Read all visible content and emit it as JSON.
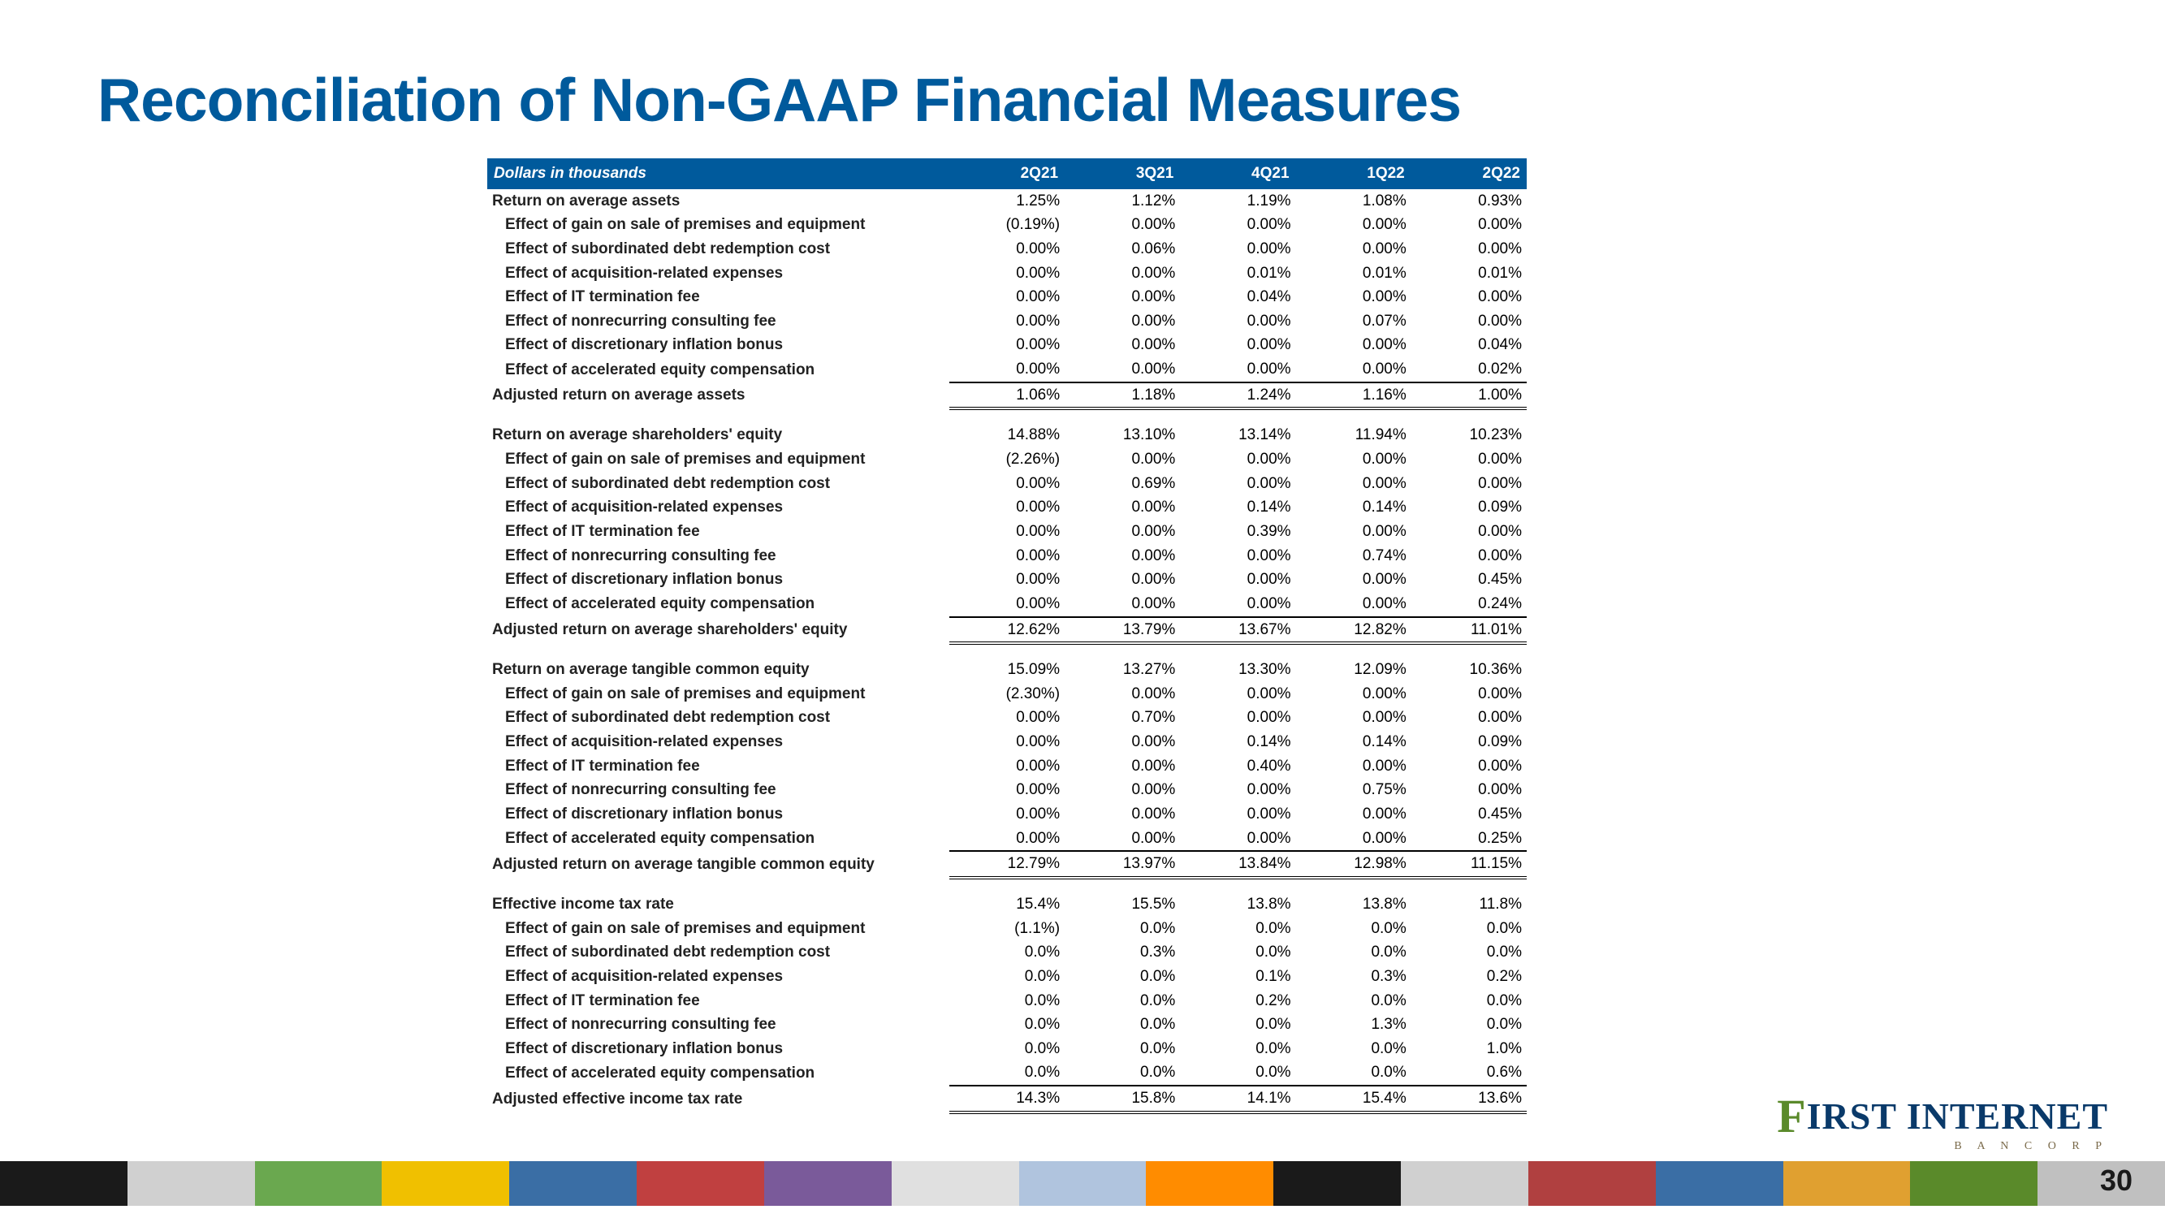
{
  "title": "Reconciliation of Non-GAAP Financial Measures",
  "header_label": "Dollars in thousands",
  "columns": [
    "2Q21",
    "3Q21",
    "4Q21",
    "1Q22",
    "2Q22"
  ],
  "sections": [
    {
      "rows": [
        {
          "label": "Return on average assets",
          "indent": false,
          "vals": [
            "1.25%",
            "1.12%",
            "1.19%",
            "1.08%",
            "0.93%"
          ]
        },
        {
          "label": "Effect of gain on sale of premises and equipment",
          "indent": true,
          "vals": [
            "(0.19%)",
            "0.00%",
            "0.00%",
            "0.00%",
            "0.00%"
          ]
        },
        {
          "label": "Effect of subordinated debt redemption cost",
          "indent": true,
          "vals": [
            "0.00%",
            "0.06%",
            "0.00%",
            "0.00%",
            "0.00%"
          ]
        },
        {
          "label": "Effect of acquisition-related expenses",
          "indent": true,
          "vals": [
            "0.00%",
            "0.00%",
            "0.01%",
            "0.01%",
            "0.01%"
          ]
        },
        {
          "label": "Effect of IT termination fee",
          "indent": true,
          "vals": [
            "0.00%",
            "0.00%",
            "0.04%",
            "0.00%",
            "0.00%"
          ]
        },
        {
          "label": "Effect of nonrecurring consulting fee",
          "indent": true,
          "vals": [
            "0.00%",
            "0.00%",
            "0.00%",
            "0.07%",
            "0.00%"
          ]
        },
        {
          "label": "Effect of discretionary inflation bonus",
          "indent": true,
          "vals": [
            "0.00%",
            "0.00%",
            "0.00%",
            "0.00%",
            "0.04%"
          ]
        },
        {
          "label": "Effect of accelerated equity compensation",
          "indent": true,
          "vals": [
            "0.00%",
            "0.00%",
            "0.00%",
            "0.00%",
            "0.02%"
          ],
          "underline": true
        },
        {
          "label": "Adjusted return on average assets",
          "indent": false,
          "vals": [
            "1.06%",
            "1.18%",
            "1.24%",
            "1.16%",
            "1.00%"
          ],
          "subtotal": true
        }
      ]
    },
    {
      "rows": [
        {
          "label": "Return on average shareholders' equity",
          "indent": false,
          "vals": [
            "14.88%",
            "13.10%",
            "13.14%",
            "11.94%",
            "10.23%"
          ]
        },
        {
          "label": "Effect of gain on sale of premises and equipment",
          "indent": true,
          "vals": [
            "(2.26%)",
            "0.00%",
            "0.00%",
            "0.00%",
            "0.00%"
          ]
        },
        {
          "label": "Effect of subordinated debt redemption cost",
          "indent": true,
          "vals": [
            "0.00%",
            "0.69%",
            "0.00%",
            "0.00%",
            "0.00%"
          ]
        },
        {
          "label": "Effect of acquisition-related expenses",
          "indent": true,
          "vals": [
            "0.00%",
            "0.00%",
            "0.14%",
            "0.14%",
            "0.09%"
          ]
        },
        {
          "label": "Effect of IT termination fee",
          "indent": true,
          "vals": [
            "0.00%",
            "0.00%",
            "0.39%",
            "0.00%",
            "0.00%"
          ]
        },
        {
          "label": "Effect of nonrecurring consulting fee",
          "indent": true,
          "vals": [
            "0.00%",
            "0.00%",
            "0.00%",
            "0.74%",
            "0.00%"
          ]
        },
        {
          "label": "Effect of discretionary inflation bonus",
          "indent": true,
          "vals": [
            "0.00%",
            "0.00%",
            "0.00%",
            "0.00%",
            "0.45%"
          ]
        },
        {
          "label": "Effect of accelerated equity compensation",
          "indent": true,
          "vals": [
            "0.00%",
            "0.00%",
            "0.00%",
            "0.00%",
            "0.24%"
          ],
          "underline": true
        },
        {
          "label": "Adjusted return on average shareholders' equity",
          "indent": false,
          "vals": [
            "12.62%",
            "13.79%",
            "13.67%",
            "12.82%",
            "11.01%"
          ],
          "subtotal": true
        }
      ]
    },
    {
      "rows": [
        {
          "label": "Return on average tangible common equity",
          "indent": false,
          "vals": [
            "15.09%",
            "13.27%",
            "13.30%",
            "12.09%",
            "10.36%"
          ]
        },
        {
          "label": "Effect of gain on sale of premises and equipment",
          "indent": true,
          "vals": [
            "(2.30%)",
            "0.00%",
            "0.00%",
            "0.00%",
            "0.00%"
          ]
        },
        {
          "label": "Effect of subordinated debt redemption cost",
          "indent": true,
          "vals": [
            "0.00%",
            "0.70%",
            "0.00%",
            "0.00%",
            "0.00%"
          ]
        },
        {
          "label": "Effect of acquisition-related expenses",
          "indent": true,
          "vals": [
            "0.00%",
            "0.00%",
            "0.14%",
            "0.14%",
            "0.09%"
          ]
        },
        {
          "label": "Effect of IT termination fee",
          "indent": true,
          "vals": [
            "0.00%",
            "0.00%",
            "0.40%",
            "0.00%",
            "0.00%"
          ]
        },
        {
          "label": "Effect of nonrecurring consulting fee",
          "indent": true,
          "vals": [
            "0.00%",
            "0.00%",
            "0.00%",
            "0.75%",
            "0.00%"
          ]
        },
        {
          "label": "Effect of discretionary inflation bonus",
          "indent": true,
          "vals": [
            "0.00%",
            "0.00%",
            "0.00%",
            "0.00%",
            "0.45%"
          ]
        },
        {
          "label": "Effect of accelerated equity compensation",
          "indent": true,
          "vals": [
            "0.00%",
            "0.00%",
            "0.00%",
            "0.00%",
            "0.25%"
          ],
          "underline": true
        },
        {
          "label": "Adjusted return on average tangible common equity",
          "indent": false,
          "vals": [
            "12.79%",
            "13.97%",
            "13.84%",
            "12.98%",
            "11.15%"
          ],
          "subtotal": true
        }
      ]
    },
    {
      "rows": [
        {
          "label": "Effective income tax rate",
          "indent": false,
          "vals": [
            "15.4%",
            "15.5%",
            "13.8%",
            "13.8%",
            "11.8%"
          ]
        },
        {
          "label": "Effect of gain on sale of premises and equipment",
          "indent": true,
          "vals": [
            "(1.1%)",
            "0.0%",
            "0.0%",
            "0.0%",
            "0.0%"
          ]
        },
        {
          "label": "Effect of subordinated debt redemption cost",
          "indent": true,
          "vals": [
            "0.0%",
            "0.3%",
            "0.0%",
            "0.0%",
            "0.0%"
          ]
        },
        {
          "label": "Effect of acquisition-related expenses",
          "indent": true,
          "vals": [
            "0.0%",
            "0.0%",
            "0.1%",
            "0.3%",
            "0.2%"
          ]
        },
        {
          "label": "Effect of IT termination fee",
          "indent": true,
          "vals": [
            "0.0%",
            "0.0%",
            "0.2%",
            "0.0%",
            "0.0%"
          ]
        },
        {
          "label": "Effect of nonrecurring consulting fee",
          "indent": true,
          "vals": [
            "0.0%",
            "0.0%",
            "0.0%",
            "1.3%",
            "0.0%"
          ]
        },
        {
          "label": "Effect of discretionary inflation bonus",
          "indent": true,
          "vals": [
            "0.0%",
            "0.0%",
            "0.0%",
            "0.0%",
            "1.0%"
          ]
        },
        {
          "label": "Effect of accelerated equity compensation",
          "indent": true,
          "vals": [
            "0.0%",
            "0.0%",
            "0.0%",
            "0.0%",
            "0.6%"
          ],
          "underline": true
        },
        {
          "label": "Adjusted effective income tax rate",
          "indent": false,
          "vals": [
            "14.3%",
            "15.8%",
            "14.1%",
            "15.4%",
            "13.6%"
          ],
          "subtotal": true
        }
      ]
    }
  ],
  "logo": {
    "first": "F",
    "rest": "IRST INTERNET",
    "sub": "B A N C O R P"
  },
  "page_number": "30",
  "deco_colors": [
    "#1a1a1a",
    "#d0d0d0",
    "#6aa84f",
    "#f0c000",
    "#3a6ea5",
    "#c04040",
    "#7a5a9a",
    "#e0e0e0",
    "#b0c4de",
    "#ff8c00",
    "#1a1a1a",
    "#d0d0d0",
    "#b04040",
    "#3a6ea5",
    "#e0a030",
    "#5a8a2a",
    "#c0c0c0"
  ]
}
